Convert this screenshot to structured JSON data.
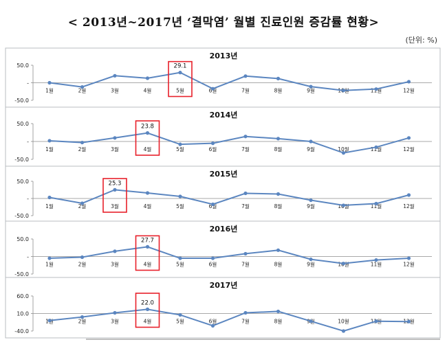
{
  "header": {
    "title": "< 2013년~2017년 ‘결막염’ 월별 진료인원 증감률 현황>",
    "unit": "(단위: %)"
  },
  "style": {
    "line_color": "#5b86c0",
    "highlight_color": "#e8202a",
    "panel_border": "#b9bcc2",
    "axis_color": "#8c8c8c"
  },
  "chart_data": [
    {
      "type": "line",
      "title": "2013년",
      "categories": [
        "1월",
        "2월",
        "3월",
        "4월",
        "5월",
        "6월",
        "7월",
        "8월",
        "9월",
        "10월",
        "11월",
        "12월"
      ],
      "values": [
        0,
        -12,
        20,
        13,
        29.1,
        -17,
        19,
        12,
        -11,
        -22,
        -18,
        3
      ],
      "yticks": [
        "50.0",
        "-",
        "-50.0"
      ],
      "ylim": [
        -50,
        50
      ],
      "highlight": {
        "index": 4,
        "label": "29.1"
      }
    },
    {
      "type": "line",
      "title": "2014년",
      "categories": [
        "1월",
        "2월",
        "3월",
        "4월",
        "5월",
        "6월",
        "7월",
        "8월",
        "9월",
        "10월",
        "11월",
        "12월"
      ],
      "values": [
        2,
        -3,
        10,
        23.8,
        -8,
        -5,
        14,
        8,
        0,
        -32,
        -16,
        10
      ],
      "yticks": [
        "50.0",
        "-",
        "-50.0"
      ],
      "ylim": [
        -50,
        50
      ],
      "highlight": {
        "index": 3,
        "label": "23.8"
      }
    },
    {
      "type": "line",
      "title": "2015년",
      "categories": [
        "1월",
        "2월",
        "3월",
        "4월",
        "5월",
        "6월",
        "7월",
        "8월",
        "9월",
        "10월",
        "11월",
        "12월"
      ],
      "values": [
        3,
        -14,
        25.3,
        16,
        6,
        -17,
        15,
        13,
        -5,
        -20,
        -15,
        10
      ],
      "yticks": [
        "50.0",
        "-",
        "-50.0"
      ],
      "ylim": [
        -50,
        50
      ],
      "highlight": {
        "index": 2,
        "label": "25.3"
      }
    },
    {
      "type": "line",
      "title": "2016년",
      "categories": [
        "1월",
        "2월",
        "3월",
        "4월",
        "5월",
        "6월",
        "7월",
        "8월",
        "9월",
        "10월",
        "11월",
        "12월"
      ],
      "values": [
        -5,
        -2,
        15,
        27.7,
        -5,
        -5,
        8,
        18,
        -8,
        -20,
        -10,
        -5
      ],
      "yticks": [
        "50.0",
        "-",
        "-50.0"
      ],
      "ylim": [
        -50,
        50
      ],
      "highlight": {
        "index": 3,
        "label": "27.7"
      }
    },
    {
      "type": "line",
      "title": "2017년",
      "categories": [
        "1월",
        "2월",
        "3월",
        "4월",
        "5월",
        "6월",
        "7월",
        "8월",
        "9월",
        "10월",
        "11월",
        "12월"
      ],
      "values": [
        -10,
        0,
        12,
        22.0,
        6,
        -25,
        12,
        16,
        -12,
        -40,
        -12,
        -13
      ],
      "yticks": [
        "60.0",
        "10.0",
        "-40.0"
      ],
      "ylim": [
        -40,
        60
      ],
      "highlight": {
        "index": 3,
        "label": "22.0"
      }
    }
  ]
}
